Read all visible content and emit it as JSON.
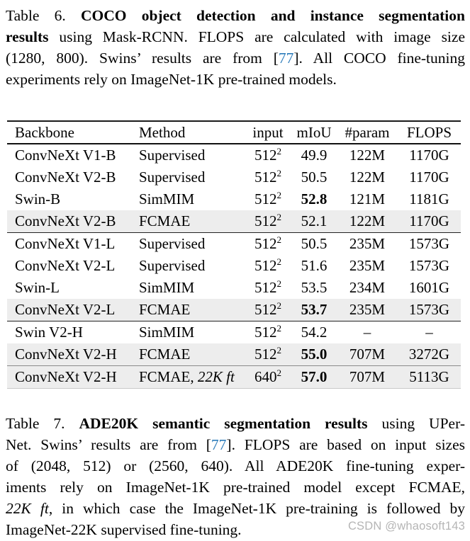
{
  "colors": {
    "citation": "#2b7bba",
    "highlight": "#ededed",
    "watermark": "#b5b5b5",
    "rule": "#111111"
  },
  "captions": {
    "table6": {
      "lines": [
        {
          "last": false,
          "segments": [
            {
              "text": "Table 6.  ",
              "style": "normal"
            },
            {
              "text": "COCO object detection and instance segmentation",
              "style": "bold"
            }
          ]
        },
        {
          "last": false,
          "segments": [
            {
              "text": "results",
              "style": "bold"
            },
            {
              "text": " using Mask-RCNN. FLOPS are calculated with image size",
              "style": "normal"
            }
          ]
        },
        {
          "last": false,
          "segments": [
            {
              "text": "(1280, 800). Swins’ results are from [",
              "style": "normal"
            },
            {
              "text": "77",
              "style": "citation"
            },
            {
              "text": "]. All COCO fine-tuning",
              "style": "normal"
            }
          ]
        },
        {
          "last": true,
          "segments": [
            {
              "text": "experiments rely on ImageNet-1K pre-trained models.",
              "style": "normal"
            }
          ]
        }
      ]
    },
    "table7": {
      "lines": [
        {
          "last": false,
          "segments": [
            {
              "text": "Table 7.  ",
              "style": "normal"
            },
            {
              "text": "ADE20K semantic segmentation results",
              "style": "bold"
            },
            {
              "text": " using UPer-",
              "style": "normal"
            }
          ]
        },
        {
          "last": false,
          "segments": [
            {
              "text": "Net. Swins’ results are from [",
              "style": "normal"
            },
            {
              "text": "77",
              "style": "citation"
            },
            {
              "text": "]. FLOPS are based on input sizes",
              "style": "normal"
            }
          ]
        },
        {
          "last": false,
          "segments": [
            {
              "text": "of (2048, 512) or (2560, 640).  All ADE20K fine-tuning exper-",
              "style": "normal"
            }
          ]
        },
        {
          "last": false,
          "segments": [
            {
              "text": "iments rely on ImageNet-1K pre-trained model except FCMAE,",
              "style": "normal"
            }
          ]
        },
        {
          "last": false,
          "segments": [
            {
              "text": "22K ft",
              "style": "italic"
            },
            {
              "text": ", in which case the ImageNet-1K pre-training is followed by",
              "style": "normal"
            }
          ]
        },
        {
          "last": true,
          "segments": [
            {
              "text": "ImageNet-22K supervised fine-tuning.",
              "style": "normal"
            }
          ]
        }
      ]
    }
  },
  "table": {
    "headers": [
      "Backbone",
      "Method",
      "input",
      "mIoU",
      "#param",
      "FLOPS"
    ],
    "rows": [
      {
        "backbone": "ConvNeXt V1-B",
        "method": "Supervised",
        "method_italic": "",
        "input_base": "512",
        "input_sup": "2",
        "miou": "49.9",
        "miou_bold": false,
        "param": "122M",
        "flops": "1170G",
        "highlight": false,
        "rule_after": "none"
      },
      {
        "backbone": "ConvNeXt V2-B",
        "method": "Supervised",
        "method_italic": "",
        "input_base": "512",
        "input_sup": "2",
        "miou": "50.5",
        "miou_bold": false,
        "param": "122M",
        "flops": "1170G",
        "highlight": false,
        "rule_after": "none"
      },
      {
        "backbone": "Swin-B",
        "method": "SimMIM",
        "method_italic": "",
        "input_base": "512",
        "input_sup": "2",
        "miou": "52.8",
        "miou_bold": true,
        "param": "121M",
        "flops": "1181G",
        "highlight": false,
        "rule_after": "none"
      },
      {
        "backbone": "ConvNeXt V2-B",
        "method": "FCMAE",
        "method_italic": "",
        "input_base": "512",
        "input_sup": "2",
        "miou": "52.1",
        "miou_bold": false,
        "param": "122M",
        "flops": "1170G",
        "highlight": true,
        "rule_after": "strong"
      },
      {
        "backbone": "ConvNeXt V1-L",
        "method": "Supervised",
        "method_italic": "",
        "input_base": "512",
        "input_sup": "2",
        "miou": "50.5",
        "miou_bold": false,
        "param": "235M",
        "flops": "1573G",
        "highlight": false,
        "rule_after": "none"
      },
      {
        "backbone": "ConvNeXt V2-L",
        "method": "Supervised",
        "method_italic": "",
        "input_base": "512",
        "input_sup": "2",
        "miou": "51.6",
        "miou_bold": false,
        "param": "235M",
        "flops": "1573G",
        "highlight": false,
        "rule_after": "none"
      },
      {
        "backbone": "Swin-L",
        "method": "SimMIM",
        "method_italic": "",
        "input_base": "512",
        "input_sup": "2",
        "miou": "53.5",
        "miou_bold": false,
        "param": "234M",
        "flops": "1601G",
        "highlight": false,
        "rule_after": "none"
      },
      {
        "backbone": "ConvNeXt V2-L",
        "method": "FCMAE",
        "method_italic": "",
        "input_base": "512",
        "input_sup": "2",
        "miou": "53.7",
        "miou_bold": true,
        "param": "235M",
        "flops": "1573G",
        "highlight": true,
        "rule_after": "strong"
      },
      {
        "backbone": "Swin V2-H",
        "method": "SimMIM",
        "method_italic": "",
        "input_base": "512",
        "input_sup": "2",
        "miou": "54.2",
        "miou_bold": false,
        "param": "–",
        "flops": "–",
        "highlight": false,
        "rule_after": "none"
      },
      {
        "backbone": "ConvNeXt V2-H",
        "method": "FCMAE",
        "method_italic": "",
        "input_base": "512",
        "input_sup": "2",
        "miou": "55.0",
        "miou_bold": true,
        "param": "707M",
        "flops": "3272G",
        "highlight": true,
        "rule_after": "thin"
      },
      {
        "backbone": "ConvNeXt V2-H",
        "method": "FCMAE, ",
        "method_italic": "22K ft",
        "input_base": "640",
        "input_sup": "2",
        "miou": "57.0",
        "miou_bold": true,
        "param": "707M",
        "flops": "5113G",
        "highlight": true,
        "rule_after": "none"
      }
    ]
  },
  "watermark": {
    "text": "CSDN @whaosoft143"
  }
}
